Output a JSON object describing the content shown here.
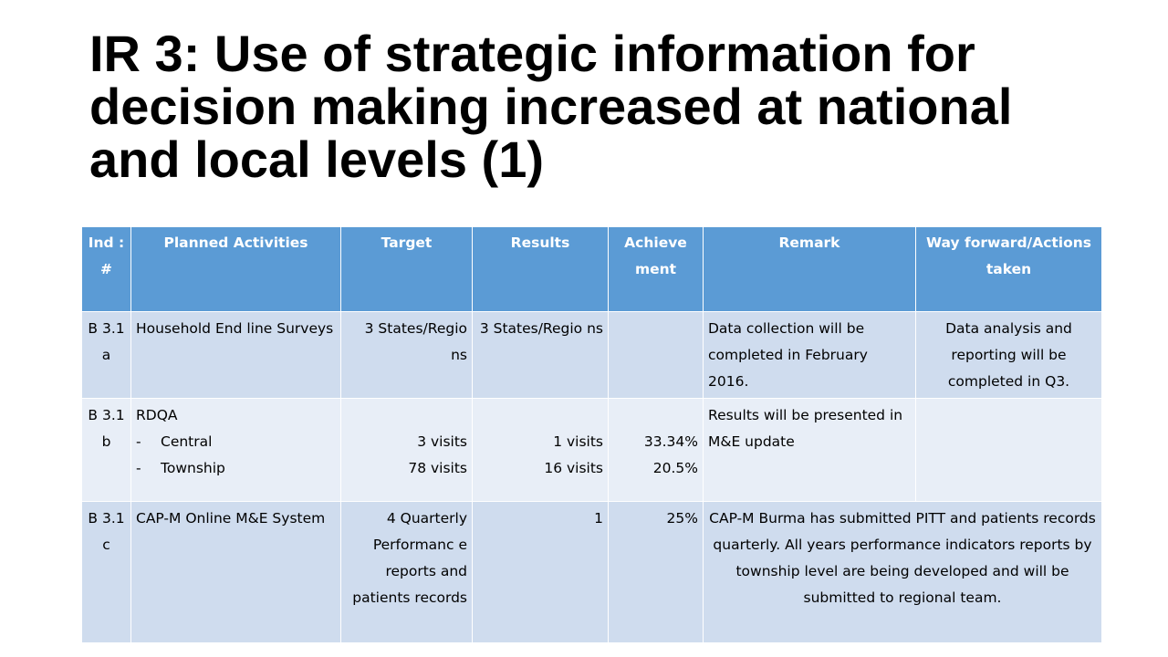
{
  "slide": {
    "title": "IR 3: Use of strategic information for decision making increased at national and local levels (1)"
  },
  "table": {
    "headers": {
      "ind": "Ind : #",
      "activities": "Planned Activities",
      "target": "Target",
      "results": "Results",
      "achievement": "Achieve ment",
      "remark": "Remark",
      "way_forward": "Way forward/Actions taken"
    },
    "rows": [
      {
        "ind": "B 3.1 a",
        "activity": "Household End line Surveys",
        "target": "3 States/Regio ns",
        "results": "3 States/Regio ns",
        "achievement": "",
        "remark": "Data collection will be completed in February 2016.",
        "way_forward": "Data analysis and reporting will be completed in Q3."
      },
      {
        "ind": "B 3.1 b",
        "activity": "RDQA",
        "sub_items": [
          "Central",
          "Township"
        ],
        "target_1": "3 visits",
        "target_2": "78 visits",
        "results_1": "1 visits",
        "results_2": "16 visits",
        "achievement_1": "33.34%",
        "achievement_2": "20.5%",
        "remark": "Results will be presented in M&E update",
        "way_forward": ""
      },
      {
        "ind": "B 3.1 c",
        "activity": "CAP-M Online M&E System",
        "target": "4 Quarterly Performanc e reports and patients records",
        "results": "1",
        "achievement": "25%",
        "remark_merged": "CAP-M Burma has submitted PITT and patients records quarterly. All years performance indicators reports by township level are being developed and will be submitted to regional team."
      }
    ]
  }
}
